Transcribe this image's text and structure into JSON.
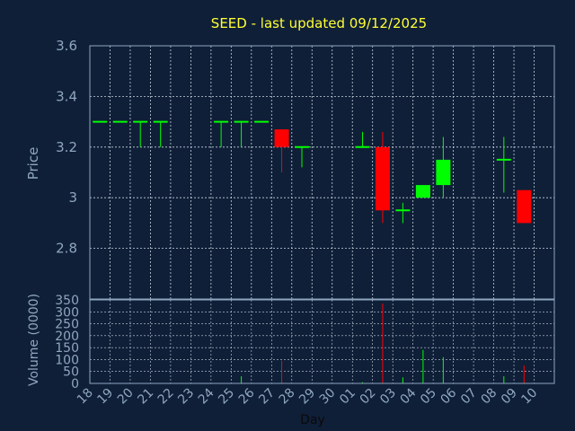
{
  "colors": {
    "background": "#0f1f38",
    "frame": "#8fa6bf",
    "grid": "#c8d2dc",
    "title": "#ffff33",
    "axis_text": "#8fa6bf",
    "day_label": "#0a0a0a",
    "up": "#00ff00",
    "down": "#ff0000"
  },
  "chart_data": {
    "type": "candlestick",
    "title": "SEED - last updated 09/12/2025",
    "xlabel": "Day",
    "categories": [
      "18",
      "19",
      "20",
      "21",
      "22",
      "23",
      "24",
      "25",
      "26",
      "27",
      "28",
      "29",
      "30",
      "01",
      "02",
      "03",
      "04",
      "05",
      "06",
      "07",
      "08",
      "09",
      "10"
    ],
    "price_panel": {
      "ylabel": "Price",
      "ylim": [
        2.6,
        3.6
      ],
      "yticks": [
        2.8,
        3,
        3.2,
        3.4,
        3.6
      ],
      "ytick_labels": [
        "2.8",
        "3",
        "3.2",
        "3.4",
        "3.6"
      ],
      "grid": true,
      "candles": [
        {
          "day": "18",
          "open": 3.3,
          "high": 3.3,
          "low": 3.3,
          "close": 3.3
        },
        {
          "day": "19",
          "open": 3.3,
          "high": 3.3,
          "low": 3.3,
          "close": 3.3
        },
        {
          "day": "20",
          "open": 3.3,
          "high": 3.3,
          "low": 3.2,
          "close": 3.3
        },
        {
          "day": "21",
          "open": 3.3,
          "high": 3.3,
          "low": 3.2,
          "close": 3.3
        },
        {
          "day": "24",
          "open": 3.3,
          "high": 3.3,
          "low": 3.2,
          "close": 3.3
        },
        {
          "day": "25",
          "open": 3.3,
          "high": 3.3,
          "low": 3.2,
          "close": 3.3
        },
        {
          "day": "26",
          "open": 3.3,
          "high": 3.3,
          "low": 3.3,
          "close": 3.3
        },
        {
          "day": "27",
          "open": 3.27,
          "high": 3.27,
          "low": 3.1,
          "close": 3.2
        },
        {
          "day": "28",
          "open": 3.2,
          "high": 3.2,
          "low": 3.12,
          "close": 3.2
        },
        {
          "day": "01",
          "open": 3.2,
          "high": 3.26,
          "low": 3.2,
          "close": 3.2
        },
        {
          "day": "02",
          "open": 3.2,
          "high": 3.26,
          "low": 2.9,
          "close": 2.95
        },
        {
          "day": "03",
          "open": 2.95,
          "high": 2.98,
          "low": 2.9,
          "close": 2.95
        },
        {
          "day": "04",
          "open": 3.0,
          "high": 3.05,
          "low": 3.0,
          "close": 3.05
        },
        {
          "day": "05",
          "open": 3.05,
          "high": 3.24,
          "low": 3.0,
          "close": 3.15
        },
        {
          "day": "08",
          "open": 3.15,
          "high": 3.24,
          "low": 3.02,
          "close": 3.15
        },
        {
          "day": "09",
          "open": 3.03,
          "high": 3.03,
          "low": 2.9,
          "close": 2.9
        }
      ]
    },
    "volume_panel": {
      "ylabel": "Volume (0000)",
      "ylim": [
        0,
        350
      ],
      "yticks": [
        0,
        50,
        100,
        150,
        200,
        250,
        300,
        350
      ],
      "ytick_labels": [
        "0",
        "50",
        "100",
        "150",
        "200",
        "250",
        "300",
        "350"
      ],
      "grid": true,
      "bars": [
        {
          "day": "25",
          "value": 30,
          "direction": "up"
        },
        {
          "day": "27",
          "value": 95,
          "direction": "down"
        },
        {
          "day": "01",
          "value": 5,
          "direction": "up"
        },
        {
          "day": "02",
          "value": 335,
          "direction": "down"
        },
        {
          "day": "03",
          "value": 25,
          "direction": "up"
        },
        {
          "day": "04",
          "value": 140,
          "direction": "up"
        },
        {
          "day": "05",
          "value": 110,
          "direction": "up"
        },
        {
          "day": "08",
          "value": 30,
          "direction": "up"
        },
        {
          "day": "09",
          "value": 75,
          "direction": "down"
        }
      ]
    }
  }
}
